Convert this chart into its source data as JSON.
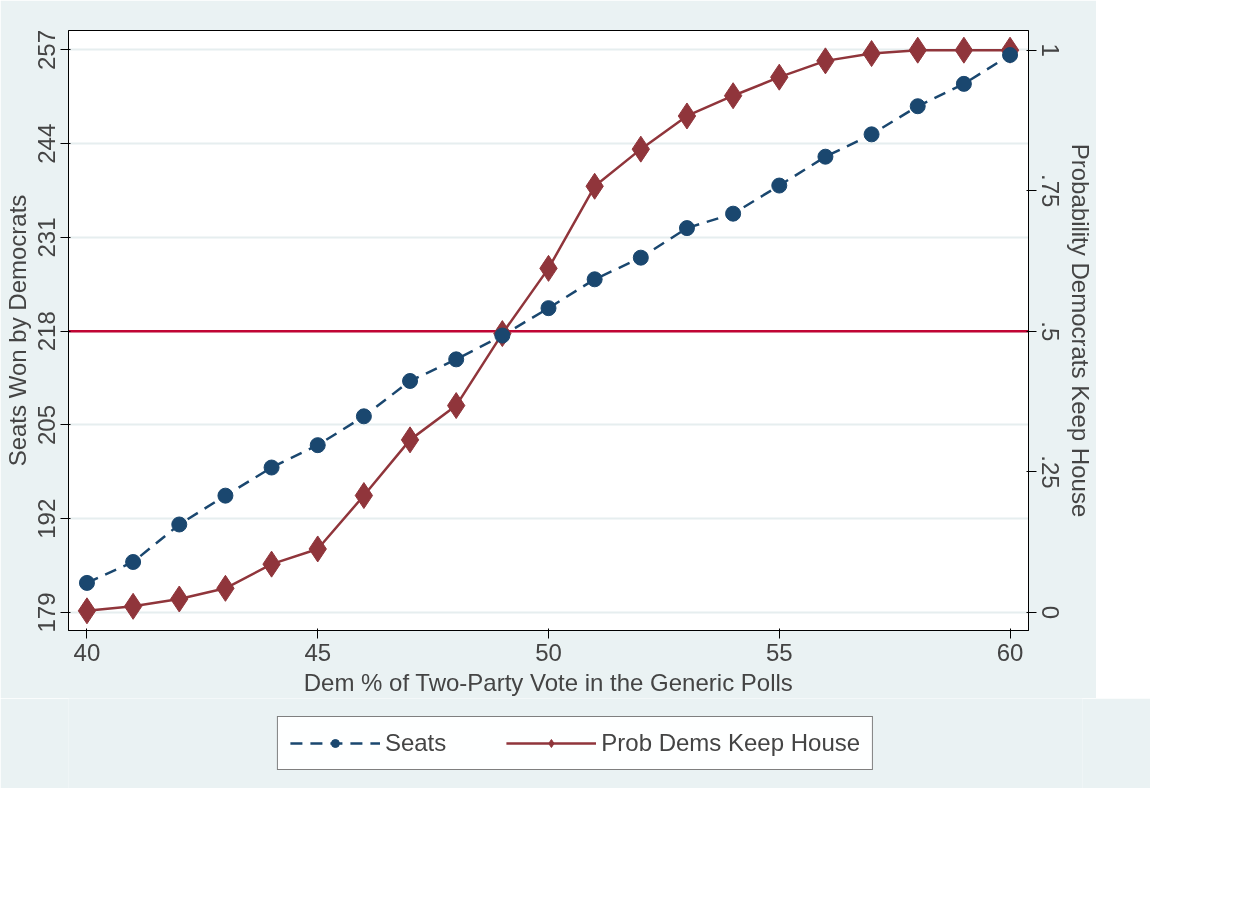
{
  "chart_data": {
    "type": "line",
    "xlabel": "Dem % of Two-Party Vote in the Generic Polls",
    "ylabel": "Seats Won by Democrats",
    "y2label": "Probability Democrats Keep House",
    "x": [
      40,
      41,
      42,
      43,
      44,
      45,
      46,
      47,
      48,
      49,
      50,
      51,
      52,
      53,
      54,
      55,
      56,
      57,
      58,
      59,
      60
    ],
    "series": [
      {
        "name": "Seats",
        "color": "#1a476f",
        "marker": "circle",
        "line_style": "dashed",
        "values": [
          183.1,
          186.0,
          191.2,
          195.2,
          199.1,
          202.2,
          206.2,
          211.1,
          214.1,
          217.4,
          221.2,
          225.2,
          228.2,
          232.3,
          234.3,
          238.2,
          242.2,
          245.3,
          249.2,
          252.3,
          256.3
        ]
      },
      {
        "name": "Prob Dems Keep House",
        "color": "#90353b",
        "marker": "diamond",
        "line_style": "solid",
        "axis": "y2",
        "values": [
          0.003,
          0.011,
          0.024,
          0.043,
          0.086,
          0.113,
          0.208,
          0.307,
          0.368,
          0.496,
          0.612,
          0.758,
          0.824,
          0.883,
          0.919,
          0.952,
          0.981,
          0.994,
          1.0,
          1.0,
          1.0
        ]
      }
    ],
    "xlim": [
      39.6,
      60.4
    ],
    "xticks": [
      40,
      45,
      50,
      55,
      60
    ],
    "ylim": [
      176.5,
      259.7
    ],
    "yticks": [
      179,
      192,
      205,
      218,
      231,
      244,
      257
    ],
    "y2lim": [
      -0.032,
      1.035
    ],
    "y2ticks": [
      {
        "value": 0,
        "label": "0"
      },
      {
        "value": 0.25,
        "label": ".25"
      },
      {
        "value": 0.5,
        "label": ".5"
      },
      {
        "value": 0.75,
        "label": ".75"
      },
      {
        "value": 1,
        "label": "1"
      }
    ],
    "ref_lines": [
      {
        "axis": "y2",
        "value": 0.5,
        "color": "#c10534"
      }
    ],
    "grid": "y",
    "legend": "bottom"
  }
}
